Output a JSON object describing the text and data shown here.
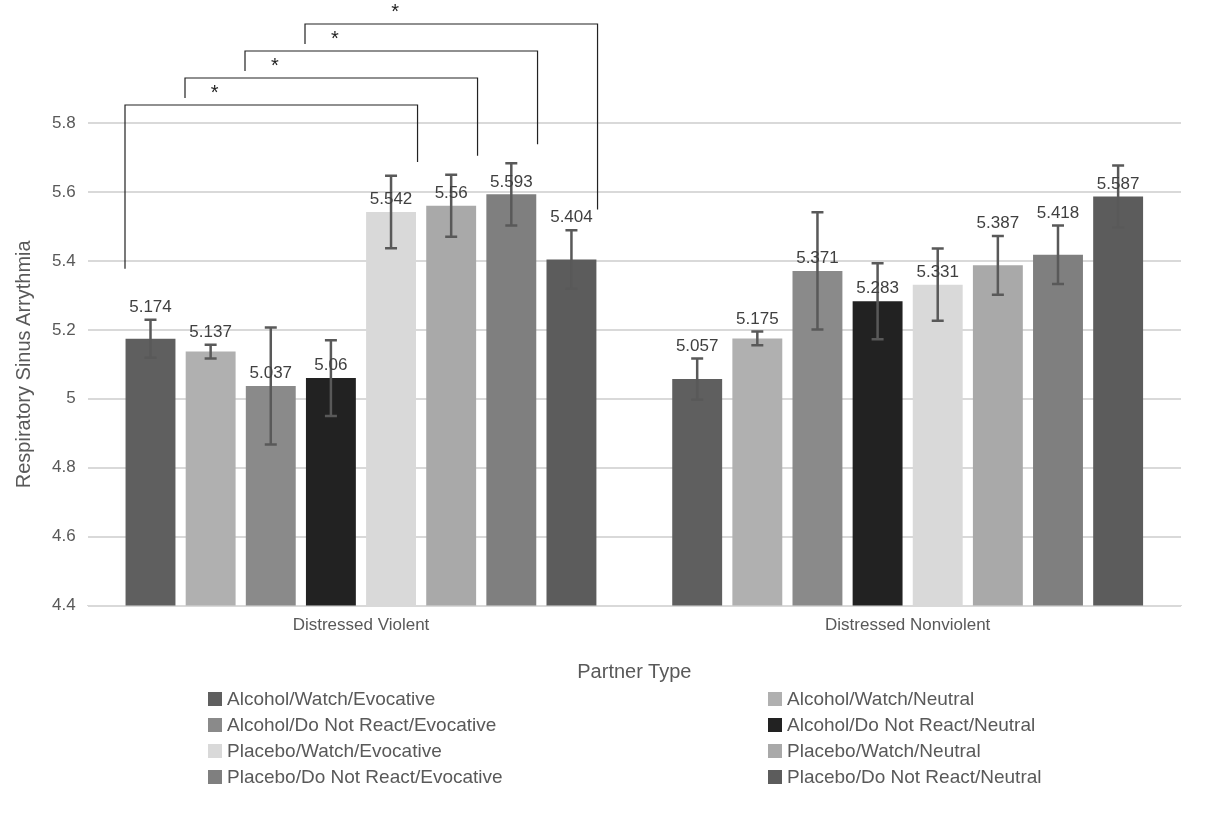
{
  "chart_data": {
    "type": "bar",
    "xlabel": "Partner Type",
    "ylabel": "Respiratory Sinus Arrythmia",
    "categories": [
      "Distressed Violent",
      "Distressed Nonviolent"
    ],
    "series": [
      {
        "name": "Alcohol/Watch/Evocative",
        "color": "#5f5f5f",
        "values": [
          5.174,
          5.057
        ],
        "errors": [
          0.055,
          0.06
        ]
      },
      {
        "name": "Alcohol/Watch/Neutral",
        "color": "#b0b0b0",
        "values": [
          5.137,
          5.175
        ],
        "errors": [
          0.02,
          0.02
        ]
      },
      {
        "name": "Alcohol/Do Not React/Evocative",
        "color": "#8a8a8a",
        "values": [
          5.037,
          5.371
        ],
        "errors": [
          0.17,
          0.17
        ]
      },
      {
        "name": "Alcohol/Do Not React/Neutral",
        "color": "#222222",
        "values": [
          5.06,
          5.283
        ],
        "errors": [
          0.11,
          0.11
        ]
      },
      {
        "name": "Placebo/Watch/Evocative",
        "color": "#d9d9d9",
        "values": [
          5.542,
          5.331
        ],
        "errors": [
          0.105,
          0.105
        ]
      },
      {
        "name": "Placebo/Watch/Neutral",
        "color": "#a9a9a9",
        "values": [
          5.56,
          5.387
        ],
        "errors": [
          0.09,
          0.085
        ]
      },
      {
        "name": "Placebo/Do Not React/Evocative",
        "color": "#7f7f7f",
        "values": [
          5.593,
          5.418
        ],
        "errors": [
          0.09,
          0.085
        ]
      },
      {
        "name": "Placebo/Do Not React/Neutral",
        "color": "#5c5c5c",
        "values": [
          5.404,
          5.587
        ],
        "errors": [
          0.085,
          0.09
        ]
      }
    ],
    "ylim": [
      4.4,
      5.8
    ],
    "yticks": [
      4.4,
      4.6,
      4.8,
      5,
      5.2,
      5.4,
      5.6,
      5.8
    ],
    "grid": "y",
    "legend": "bottom",
    "data_labels": true,
    "annotations": [
      "*",
      "*",
      "*",
      "*"
    ]
  }
}
